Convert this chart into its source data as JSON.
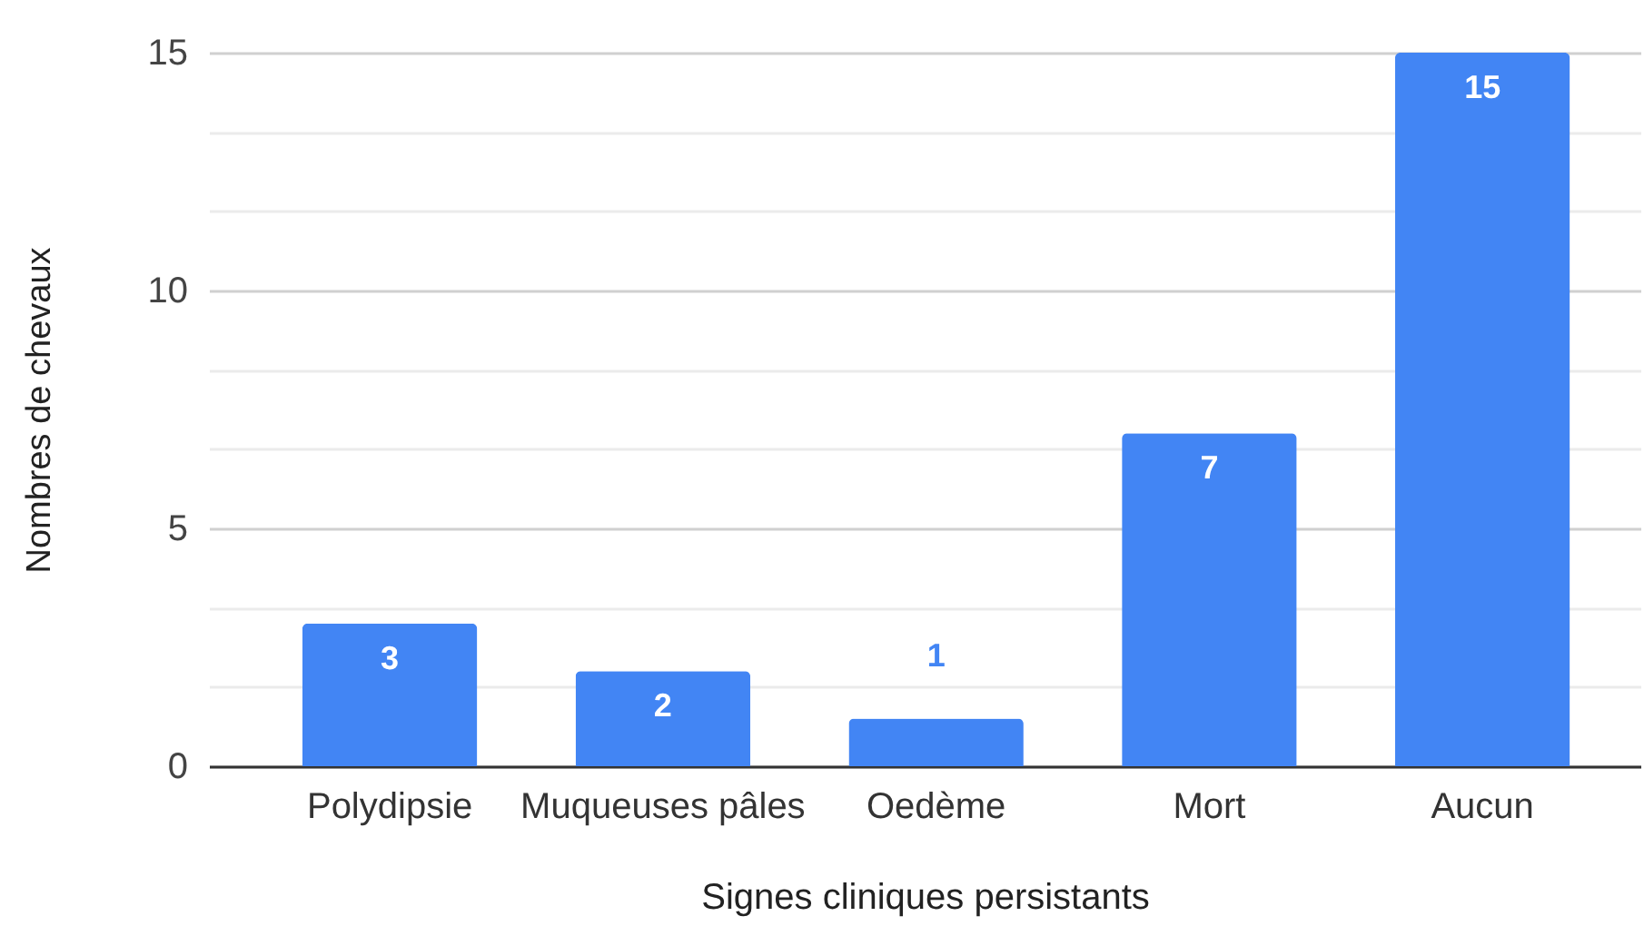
{
  "chart_data": {
    "type": "bar",
    "xlabel": "Signes cliniques persistants",
    "ylabel": "Nombres de chevaux",
    "categories": [
      "Polydipsie",
      "Muqueuses pâles",
      "Oedème",
      "Mort",
      "Aucun"
    ],
    "values": [
      3,
      2,
      1,
      7,
      15
    ],
    "color": "#4285f4",
    "ylim": [
      0,
      15
    ],
    "yticks": [
      0,
      {
        "value": 1.67,
        "label": null
      },
      {
        "value": 3.33,
        "label": null
      },
      5,
      {
        "value": 6.67,
        "label": null
      },
      {
        "value": 8.33,
        "label": null
      },
      10,
      {
        "value": 11.67,
        "label": null
      },
      {
        "value": 13.33,
        "label": null
      },
      15
    ],
    "grid": "y",
    "data_labels": true
  }
}
